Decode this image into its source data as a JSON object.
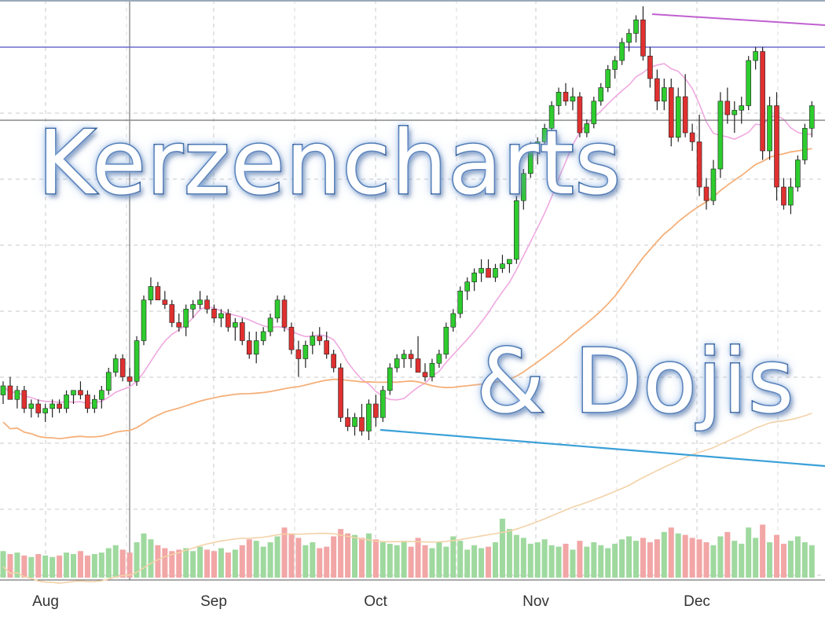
{
  "title_line_1": "Kerzencharts",
  "title_line_2": "& Dojis",
  "chart_data": {
    "type": "candlestick",
    "x_tick_labels": [
      "Aug",
      "Sep",
      "Oct",
      "Nov",
      "Dec"
    ],
    "grid": true,
    "colors": {
      "up": "#2ecc2e",
      "down": "#e03030",
      "wick": "#222222",
      "volume_up": "#9fd99f",
      "volume_down": "#f2a6a6",
      "ma_short": "#f0a8e0",
      "ma_mid": "#f5b07a",
      "ma_long": "#f3d2a8",
      "support_line": "#3aa0d8",
      "resistance_line": "#c060d0",
      "horizontal_line_blue": "#6a6ad0",
      "horizontal_line_gray": "#888888"
    },
    "candles": [
      {
        "o": 100,
        "h": 103,
        "l": 98,
        "c": 102
      },
      {
        "o": 102,
        "h": 104,
        "l": 99,
        "c": 99
      },
      {
        "o": 99,
        "h": 102,
        "l": 97,
        "c": 101
      },
      {
        "o": 101,
        "h": 102,
        "l": 96,
        "c": 97
      },
      {
        "o": 97,
        "h": 99,
        "l": 95,
        "c": 98
      },
      {
        "o": 98,
        "h": 99,
        "l": 95,
        "c": 96
      },
      {
        "o": 96,
        "h": 98,
        "l": 94,
        "c": 97
      },
      {
        "o": 97,
        "h": 99,
        "l": 95,
        "c": 98
      },
      {
        "o": 98,
        "h": 99,
        "l": 96,
        "c": 97
      },
      {
        "o": 97,
        "h": 101,
        "l": 96,
        "c": 100
      },
      {
        "o": 100,
        "h": 101,
        "l": 98,
        "c": 101
      },
      {
        "o": 101,
        "h": 103,
        "l": 99,
        "c": 100
      },
      {
        "o": 100,
        "h": 101,
        "l": 96,
        "c": 97
      },
      {
        "o": 97,
        "h": 100,
        "l": 96,
        "c": 99
      },
      {
        "o": 99,
        "h": 102,
        "l": 97,
        "c": 101
      },
      {
        "o": 101,
        "h": 106,
        "l": 100,
        "c": 105
      },
      {
        "o": 105,
        "h": 109,
        "l": 104,
        "c": 108
      },
      {
        "o": 108,
        "h": 109,
        "l": 103,
        "c": 104
      },
      {
        "o": 104,
        "h": 106,
        "l": 102,
        "c": 103
      },
      {
        "o": 103,
        "h": 113,
        "l": 102,
        "c": 112
      },
      {
        "o": 112,
        "h": 122,
        "l": 111,
        "c": 121
      },
      {
        "o": 121,
        "h": 126,
        "l": 120,
        "c": 124
      },
      {
        "o": 124,
        "h": 125,
        "l": 121,
        "c": 121
      },
      {
        "o": 121,
        "h": 123,
        "l": 119,
        "c": 120
      },
      {
        "o": 120,
        "h": 121,
        "l": 115,
        "c": 116
      },
      {
        "o": 116,
        "h": 118,
        "l": 114,
        "c": 115
      },
      {
        "o": 115,
        "h": 120,
        "l": 113,
        "c": 119
      },
      {
        "o": 119,
        "h": 121,
        "l": 117,
        "c": 120
      },
      {
        "o": 120,
        "h": 123,
        "l": 119,
        "c": 121
      },
      {
        "o": 121,
        "h": 122,
        "l": 118,
        "c": 119
      },
      {
        "o": 119,
        "h": 120,
        "l": 116,
        "c": 117
      },
      {
        "o": 117,
        "h": 119,
        "l": 115,
        "c": 118
      },
      {
        "o": 118,
        "h": 119,
        "l": 114,
        "c": 115
      },
      {
        "o": 115,
        "h": 117,
        "l": 112,
        "c": 116
      },
      {
        "o": 116,
        "h": 117,
        "l": 111,
        "c": 112
      },
      {
        "o": 112,
        "h": 114,
        "l": 108,
        "c": 109
      },
      {
        "o": 109,
        "h": 114,
        "l": 107,
        "c": 112
      },
      {
        "o": 112,
        "h": 115,
        "l": 111,
        "c": 114
      },
      {
        "o": 114,
        "h": 118,
        "l": 113,
        "c": 117
      },
      {
        "o": 117,
        "h": 122,
        "l": 116,
        "c": 121
      },
      {
        "o": 121,
        "h": 122,
        "l": 114,
        "c": 115
      },
      {
        "o": 115,
        "h": 116,
        "l": 109,
        "c": 110
      },
      {
        "o": 110,
        "h": 112,
        "l": 104,
        "c": 108
      },
      {
        "o": 108,
        "h": 112,
        "l": 106,
        "c": 111
      },
      {
        "o": 111,
        "h": 114,
        "l": 109,
        "c": 113
      },
      {
        "o": 113,
        "h": 115,
        "l": 111,
        "c": 112
      },
      {
        "o": 112,
        "h": 114,
        "l": 108,
        "c": 109
      },
      {
        "o": 109,
        "h": 110,
        "l": 105,
        "c": 106
      },
      {
        "o": 106,
        "h": 107,
        "l": 94,
        "c": 95
      },
      {
        "o": 95,
        "h": 97,
        "l": 92,
        "c": 93
      },
      {
        "o": 93,
        "h": 96,
        "l": 91,
        "c": 95
      },
      {
        "o": 95,
        "h": 98,
        "l": 91,
        "c": 92
      },
      {
        "o": 92,
        "h": 99,
        "l": 90,
        "c": 98
      },
      {
        "o": 98,
        "h": 100,
        "l": 93,
        "c": 95
      },
      {
        "o": 95,
        "h": 102,
        "l": 94,
        "c": 101
      },
      {
        "o": 101,
        "h": 107,
        "l": 100,
        "c": 106
      },
      {
        "o": 106,
        "h": 109,
        "l": 105,
        "c": 108
      },
      {
        "o": 108,
        "h": 110,
        "l": 106,
        "c": 109
      },
      {
        "o": 109,
        "h": 110,
        "l": 106,
        "c": 108
      },
      {
        "o": 108,
        "h": 113,
        "l": 105,
        "c": 105
      },
      {
        "o": 105,
        "h": 107,
        "l": 103,
        "c": 104
      },
      {
        "o": 104,
        "h": 108,
        "l": 103,
        "c": 107
      },
      {
        "o": 107,
        "h": 110,
        "l": 106,
        "c": 109
      },
      {
        "o": 109,
        "h": 116,
        "l": 108,
        "c": 115
      },
      {
        "o": 115,
        "h": 119,
        "l": 114,
        "c": 118
      },
      {
        "o": 118,
        "h": 124,
        "l": 117,
        "c": 123
      },
      {
        "o": 123,
        "h": 126,
        "l": 121,
        "c": 125
      },
      {
        "o": 125,
        "h": 128,
        "l": 123,
        "c": 127
      },
      {
        "o": 127,
        "h": 130,
        "l": 125,
        "c": 128
      },
      {
        "o": 128,
        "h": 130,
        "l": 126,
        "c": 126
      },
      {
        "o": 126,
        "h": 129,
        "l": 125,
        "c": 128
      },
      {
        "o": 128,
        "h": 131,
        "l": 127,
        "c": 129
      },
      {
        "o": 129,
        "h": 130,
        "l": 127,
        "c": 130
      },
      {
        "o": 130,
        "h": 144,
        "l": 129,
        "c": 143
      },
      {
        "o": 143,
        "h": 150,
        "l": 141,
        "c": 149
      },
      {
        "o": 149,
        "h": 156,
        "l": 148,
        "c": 154
      },
      {
        "o": 154,
        "h": 157,
        "l": 151,
        "c": 156
      },
      {
        "o": 156,
        "h": 160,
        "l": 154,
        "c": 159
      },
      {
        "o": 159,
        "h": 165,
        "l": 157,
        "c": 164
      },
      {
        "o": 164,
        "h": 168,
        "l": 162,
        "c": 167
      },
      {
        "o": 167,
        "h": 169,
        "l": 164,
        "c": 165
      },
      {
        "o": 165,
        "h": 168,
        "l": 163,
        "c": 166
      },
      {
        "o": 166,
        "h": 167,
        "l": 157,
        "c": 158
      },
      {
        "o": 158,
        "h": 161,
        "l": 157,
        "c": 160
      },
      {
        "o": 160,
        "h": 166,
        "l": 159,
        "c": 165
      },
      {
        "o": 165,
        "h": 169,
        "l": 164,
        "c": 168
      },
      {
        "o": 168,
        "h": 173,
        "l": 167,
        "c": 172
      },
      {
        "o": 172,
        "h": 175,
        "l": 170,
        "c": 174
      },
      {
        "o": 174,
        "h": 179,
        "l": 173,
        "c": 178
      },
      {
        "o": 178,
        "h": 181,
        "l": 176,
        "c": 180
      },
      {
        "o": 180,
        "h": 184,
        "l": 178,
        "c": 183
      },
      {
        "o": 183,
        "h": 186,
        "l": 174,
        "c": 175
      },
      {
        "o": 175,
        "h": 177,
        "l": 168,
        "c": 170
      },
      {
        "o": 170,
        "h": 172,
        "l": 163,
        "c": 165
      },
      {
        "o": 165,
        "h": 170,
        "l": 163,
        "c": 168
      },
      {
        "o": 168,
        "h": 170,
        "l": 155,
        "c": 157
      },
      {
        "o": 157,
        "h": 168,
        "l": 156,
        "c": 166
      },
      {
        "o": 166,
        "h": 171,
        "l": 157,
        "c": 158
      },
      {
        "o": 158,
        "h": 160,
        "l": 154,
        "c": 156
      },
      {
        "o": 156,
        "h": 162,
        "l": 144,
        "c": 146
      },
      {
        "o": 146,
        "h": 148,
        "l": 141,
        "c": 143
      },
      {
        "o": 143,
        "h": 152,
        "l": 142,
        "c": 150
      },
      {
        "o": 150,
        "h": 167,
        "l": 148,
        "c": 165
      },
      {
        "o": 165,
        "h": 168,
        "l": 160,
        "c": 162
      },
      {
        "o": 162,
        "h": 165,
        "l": 158,
        "c": 163
      },
      {
        "o": 163,
        "h": 166,
        "l": 160,
        "c": 164
      },
      {
        "o": 164,
        "h": 175,
        "l": 163,
        "c": 174
      },
      {
        "o": 174,
        "h": 177,
        "l": 172,
        "c": 176
      },
      {
        "o": 176,
        "h": 177,
        "l": 152,
        "c": 154
      },
      {
        "o": 154,
        "h": 166,
        "l": 152,
        "c": 164
      },
      {
        "o": 164,
        "h": 167,
        "l": 143,
        "c": 146
      },
      {
        "o": 146,
        "h": 148,
        "l": 141,
        "c": 142
      },
      {
        "o": 142,
        "h": 148,
        "l": 140,
        "c": 146
      },
      {
        "o": 146,
        "h": 153,
        "l": 145,
        "c": 152
      },
      {
        "o": 152,
        "h": 160,
        "l": 151,
        "c": 159
      },
      {
        "o": 159,
        "h": 165,
        "l": 157,
        "c": 164
      }
    ],
    "volume": [
      18,
      16,
      17,
      15,
      14,
      16,
      15,
      14,
      15,
      17,
      16,
      18,
      15,
      16,
      17,
      20,
      22,
      19,
      17,
      24,
      30,
      26,
      22,
      20,
      18,
      19,
      20,
      18,
      21,
      19,
      18,
      20,
      17,
      19,
      22,
      26,
      25,
      21,
      24,
      28,
      34,
      30,
      27,
      22,
      24,
      20,
      21,
      28,
      33,
      30,
      29,
      27,
      30,
      26,
      24,
      23,
      22,
      25,
      21,
      27,
      22,
      20,
      24,
      21,
      28,
      25,
      19,
      22,
      20,
      21,
      24,
      40,
      33,
      29,
      27,
      23,
      24,
      26,
      22,
      21,
      23,
      19,
      25,
      21,
      24,
      22,
      20,
      23,
      26,
      28,
      25,
      27,
      24,
      26,
      31,
      34,
      30,
      29,
      27,
      26,
      24,
      22,
      28,
      31,
      25,
      23,
      34,
      27,
      36,
      24,
      29,
      23,
      25,
      28,
      24,
      22
    ]
  }
}
